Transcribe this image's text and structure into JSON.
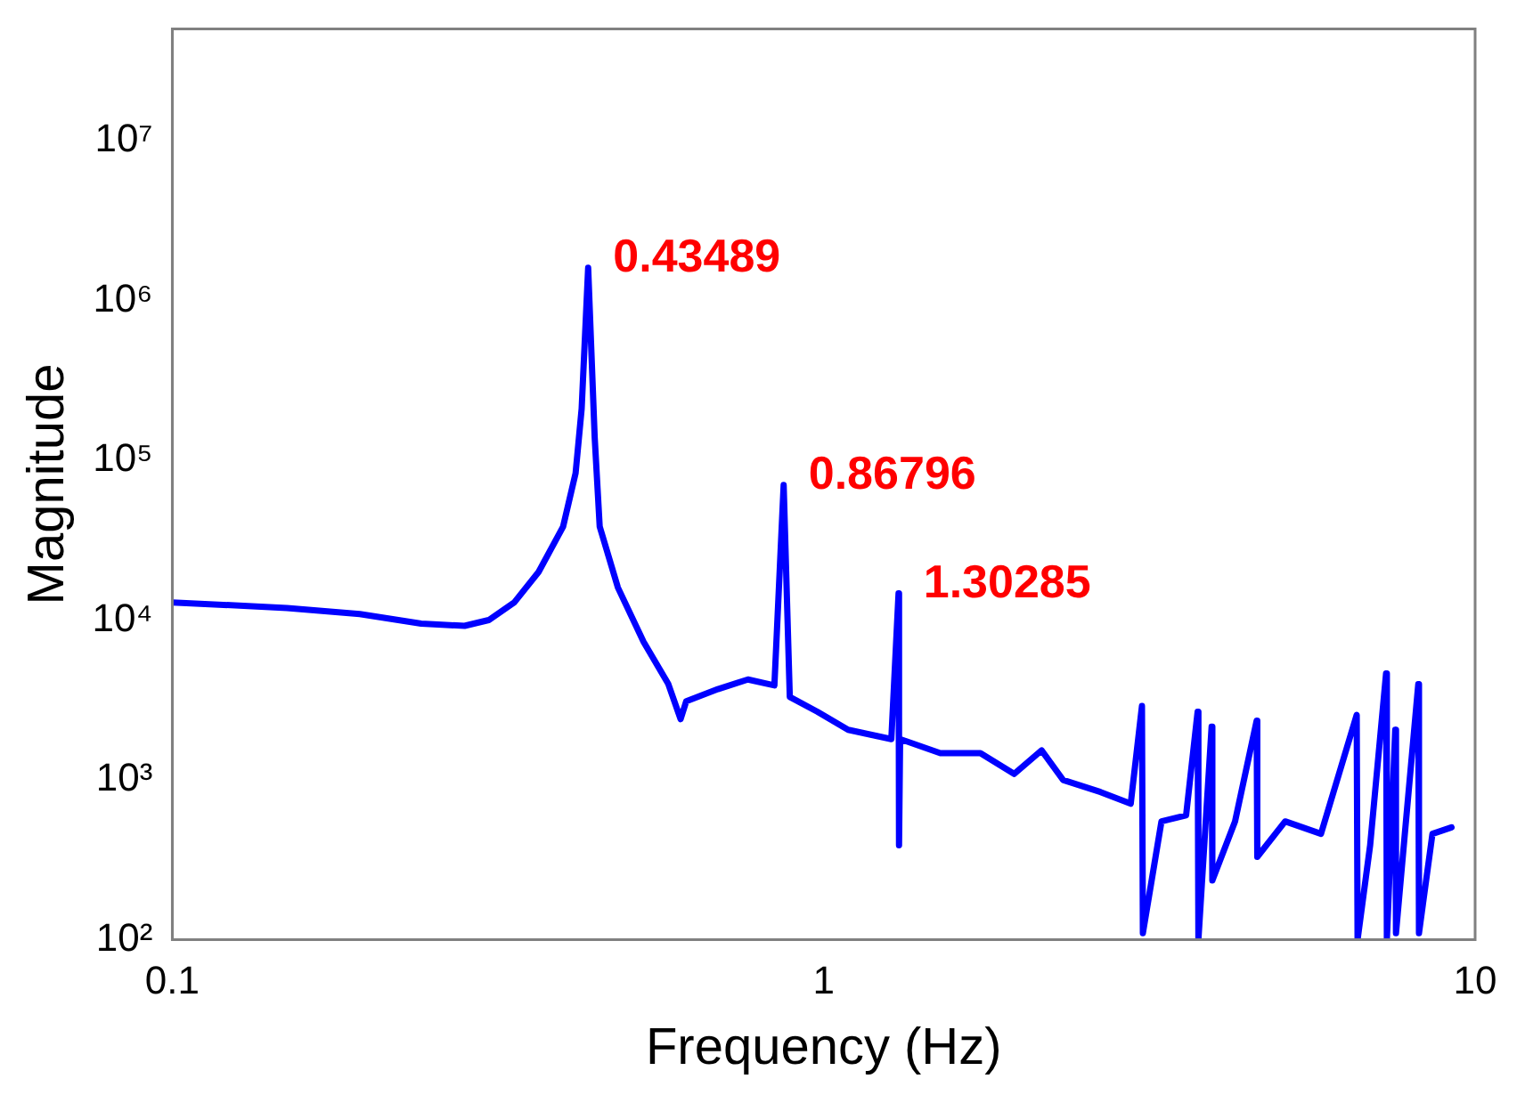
{
  "chart_data": {
    "type": "line",
    "xlabel": "Frequency (Hz)",
    "ylabel": "Magnitude",
    "log": "xy",
    "grid": false,
    "legend": false,
    "marker": "none",
    "line_style": "solid",
    "xlim": [
      0.1,
      10
    ],
    "xticks": [
      0.1,
      1,
      10
    ],
    "ylim": [
      100,
      50000000
    ],
    "yticks": [
      {
        "value": 100,
        "label": "10²"
      },
      {
        "value": 1000,
        "label": "10³"
      },
      {
        "value": 10000,
        "label": "10⁴"
      },
      {
        "value": 100000,
        "label": "10⁵"
      },
      {
        "value": 1000000,
        "label": "10⁶"
      },
      {
        "value": 10000000,
        "label": "10⁷"
      }
    ],
    "x": [
      0.1,
      0.15,
      0.194,
      0.241,
      0.281,
      0.306,
      0.335,
      0.365,
      0.398,
      0.416,
      0.425,
      0.43489,
      0.445,
      0.453,
      0.483,
      0.529,
      0.577,
      0.603,
      0.615,
      0.688,
      0.765,
      0.84,
      0.86796,
      0.887,
      0.978,
      1.09,
      1.27,
      1.30285,
      1.305,
      1.31,
      1.51,
      1.74,
      1.96,
      2.16,
      2.33,
      2.66,
      2.96,
      3.08,
      3.09,
      3.3,
      3.6,
      3.75,
      3.76,
      3.94,
      3.95,
      4.28,
      4.62,
      4.63,
      5.11,
      5.8,
      6.58,
      6.6,
      6.9,
      7.3,
      7.32,
      7.54,
      7.56,
      7.8,
      8.18,
      8.2,
      8.6,
      9.2
    ],
    "series": [
      {
        "color": "#0000ff",
        "values": [
          12900,
          11900,
          10900,
          9500,
          9200,
          10000,
          12900,
          20000,
          38400,
          83000,
          210000,
          1600000,
          140000,
          38400,
          16000,
          7300,
          4000,
          2400,
          3100,
          3700,
          4250,
          3900,
          70000,
          3300,
          2670,
          2060,
          1800,
          14700,
          390,
          1800,
          1470,
          1470,
          1090,
          1530,
          1000,
          840,
          710,
          2900,
          110,
          550,
          600,
          2670,
          100,
          2150,
          235,
          550,
          2350,
          330,
          550,
          460,
          2550,
          100,
          390,
          4640,
          100,
          2060,
          110,
          460,
          3970,
          110,
          460,
          505
        ]
      }
    ],
    "annotations": [
      {
        "text": "0.43489",
        "x": 0.43489,
        "y": 1600000
      },
      {
        "text": "0.86796",
        "x": 0.86796,
        "y": 70000
      },
      {
        "text": "1.30285",
        "x": 1.30285,
        "y": 14700
      }
    ]
  }
}
